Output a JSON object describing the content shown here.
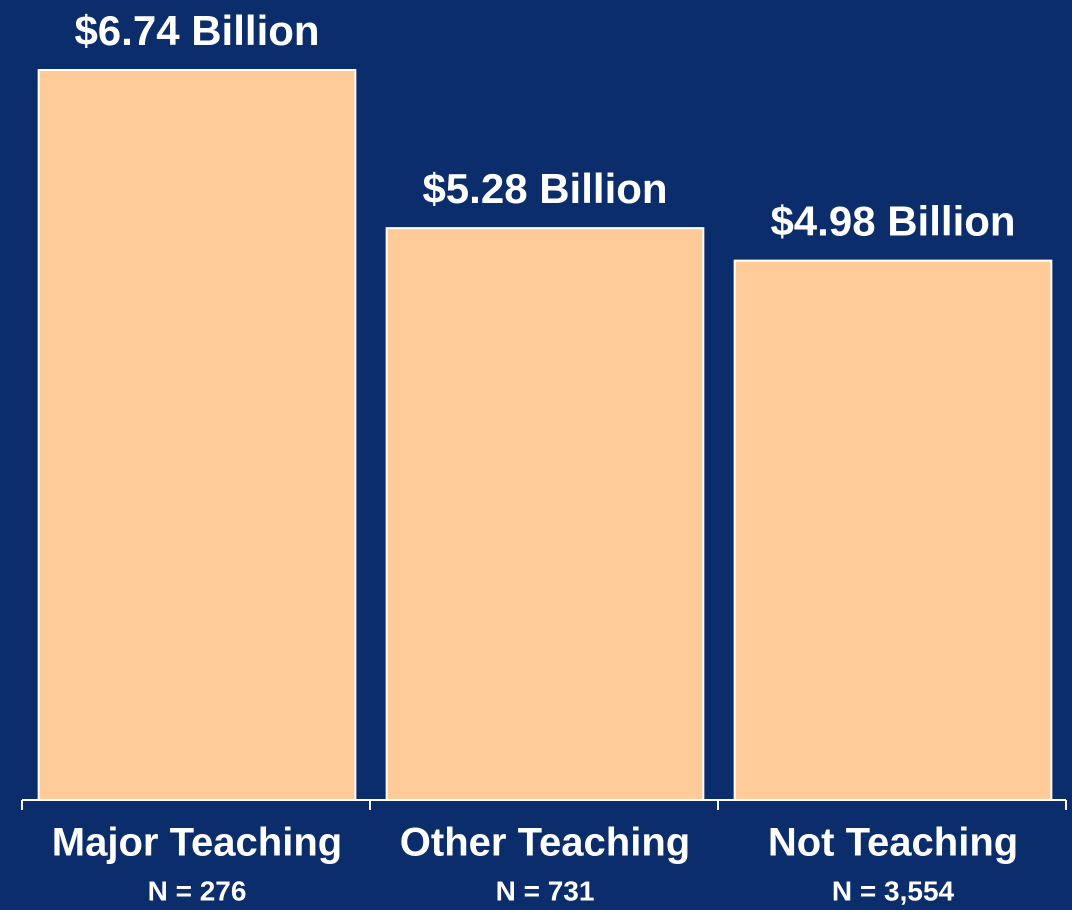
{
  "chart_data": {
    "type": "bar",
    "categories": [
      "Major Teaching",
      "Other Teaching",
      "Not Teaching"
    ],
    "category_notes": [
      "N = 276",
      "N = 731",
      "N = 3,554"
    ],
    "values": [
      6.74,
      5.28,
      4.98
    ],
    "value_labels": [
      "$6.74 Billion",
      "$5.28 Billion",
      "$4.98 Billion"
    ],
    "color": "#ffcc99",
    "ylim": [
      0,
      6.74
    ]
  }
}
